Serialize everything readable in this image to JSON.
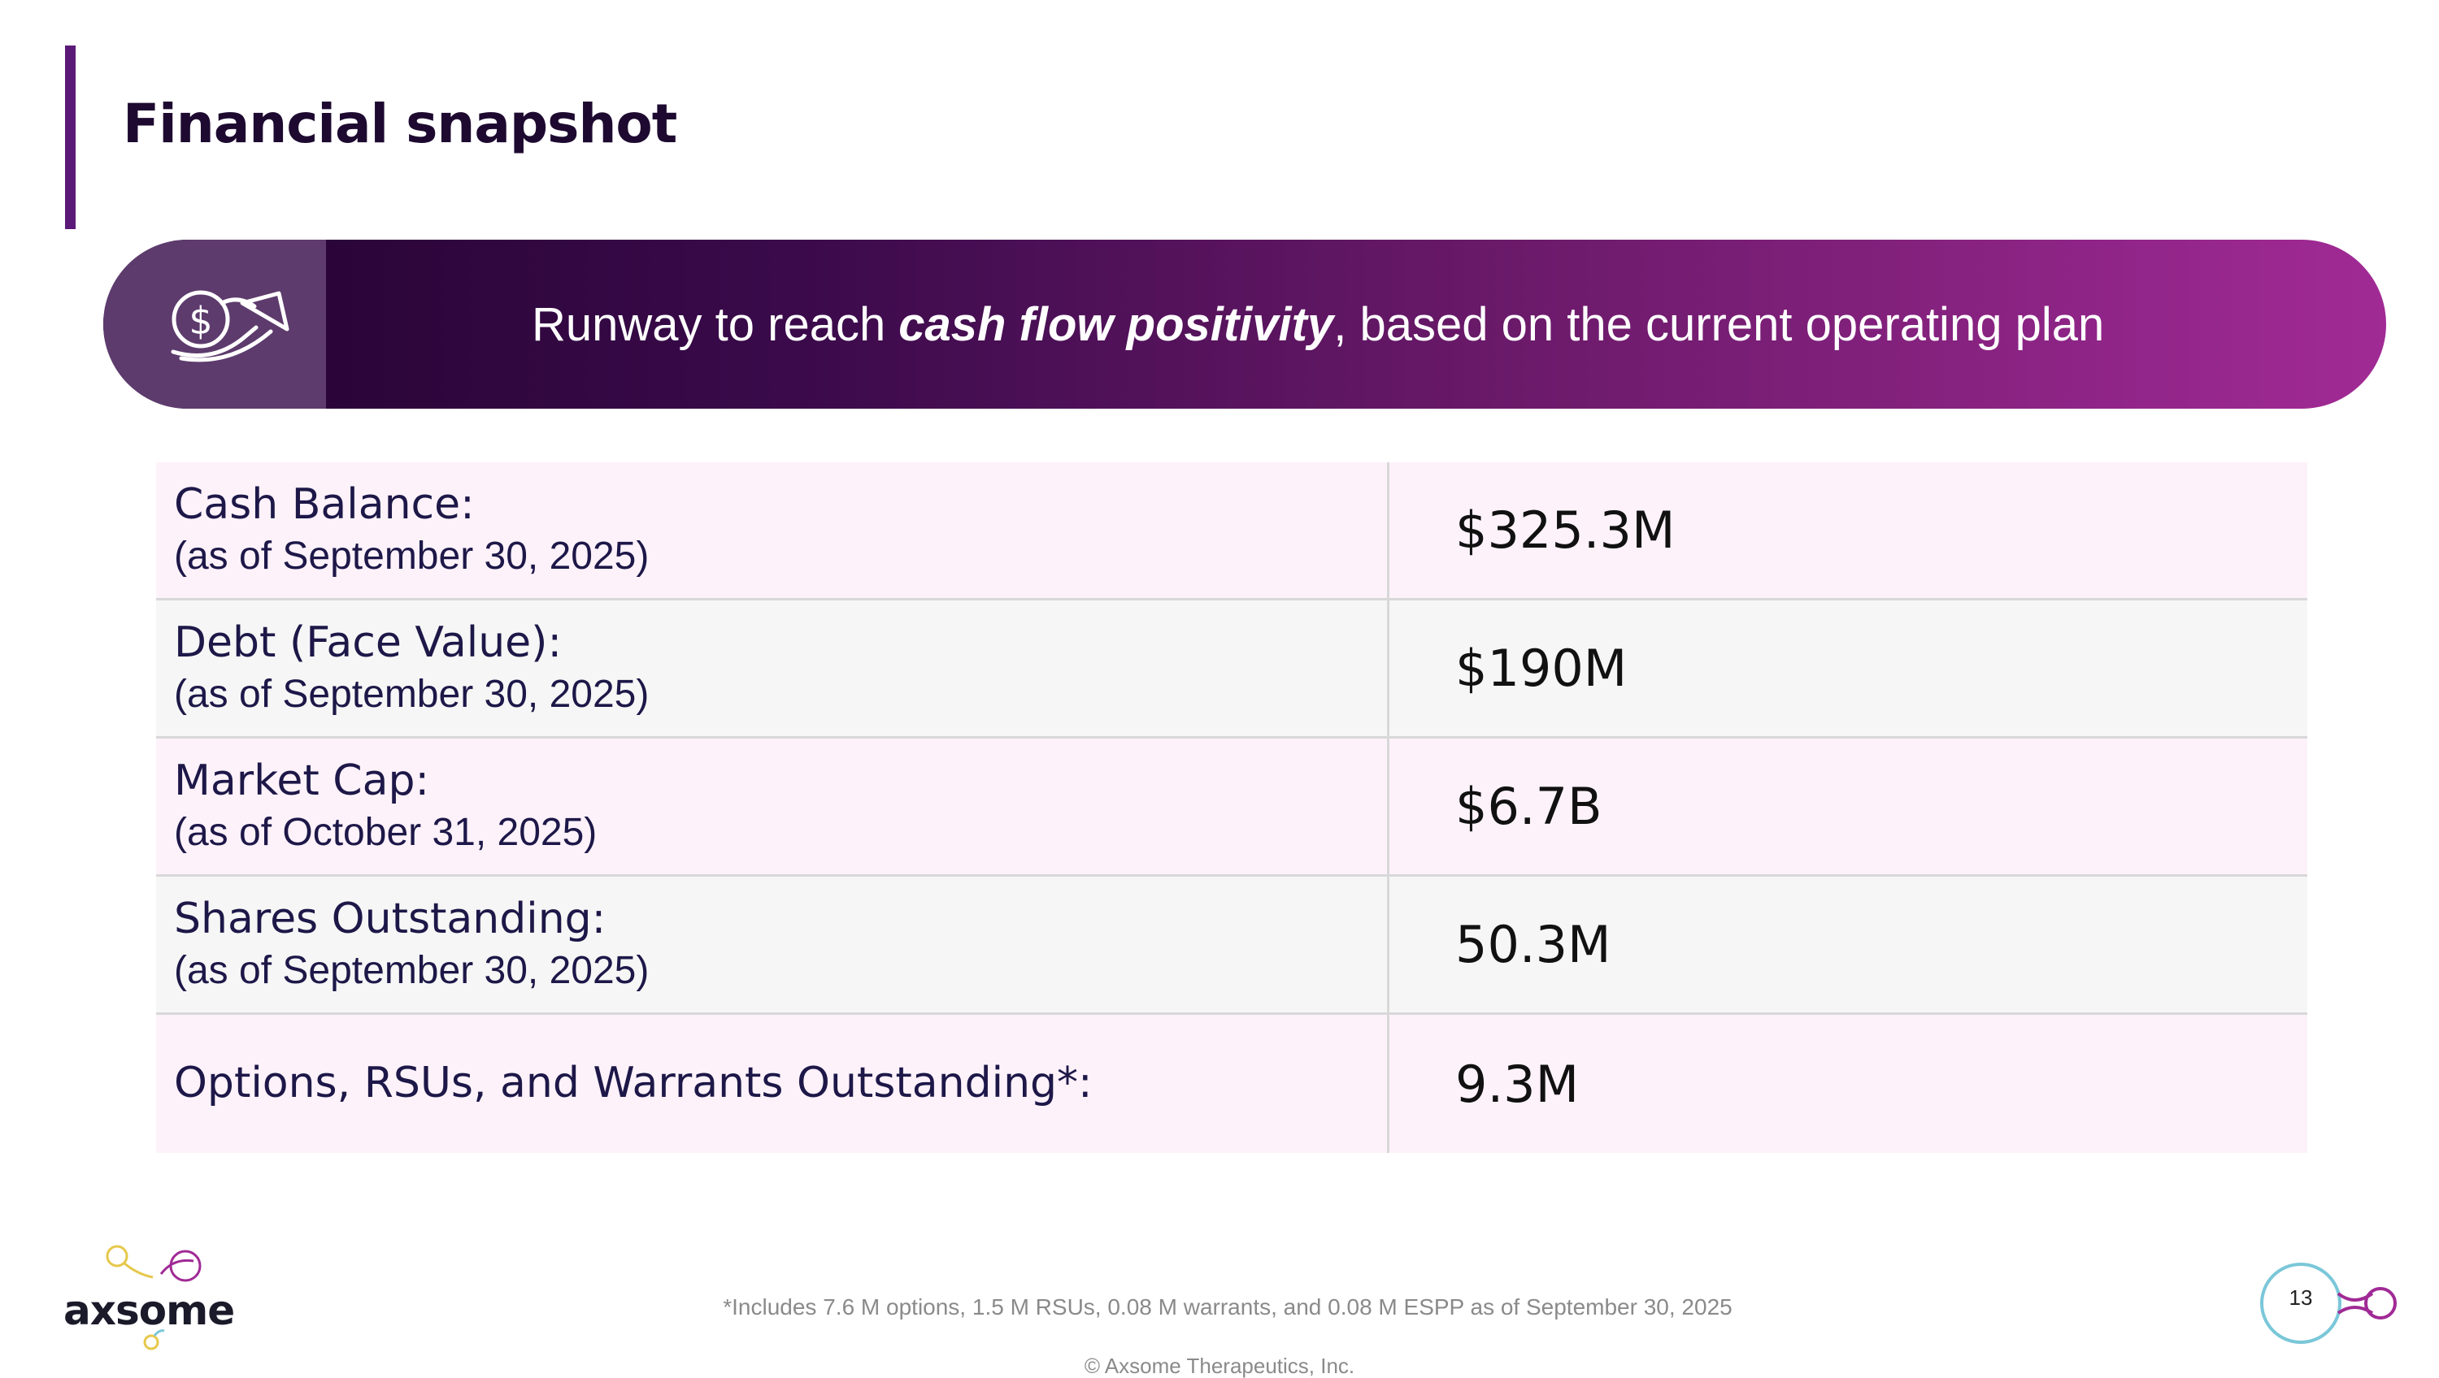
{
  "slide": {
    "title": "Financial snapshot",
    "page_number": "13"
  },
  "banner": {
    "icon": "dollar-growth-arrow-icon",
    "text_before": "Runway to reach",
    "text_emphasis": "cash flow positivity",
    "text_after": ", based on the current operating plan"
  },
  "table": {
    "rows": [
      {
        "label": "Cash Balance:",
        "sublabel": "(as of September 30, 2025)",
        "value": "$325.3M"
      },
      {
        "label": "Debt (Face Value):",
        "sublabel": "(as of September 30, 2025)",
        "value": "$190M"
      },
      {
        "label": "Market Cap:",
        "sublabel": "(as of October 31, 2025)",
        "value": "$6.7B"
      },
      {
        "label": "Shares Outstanding:",
        "sublabel": "(as of September 30, 2025)",
        "value": "50.3M"
      },
      {
        "label": "Options, RSUs, and Warrants Outstanding*:",
        "sublabel": "",
        "value": "9.3M"
      }
    ]
  },
  "footer": {
    "logo_text": "axsome",
    "footnote": "*Includes 7.6 M options, 1.5 M RSUs, 0.08 M warrants, and 0.08 M ESPP as of September 30, 2025",
    "copyright": "© Axsome Therapeutics, Inc."
  },
  "colors": {
    "accent": "#5b1a78",
    "banner_start": "#2a0538",
    "banner_end": "#a12a95",
    "row_pink": "#fdf2fa",
    "row_gray": "#f6f6f6",
    "label_text": "#1d1848"
  }
}
